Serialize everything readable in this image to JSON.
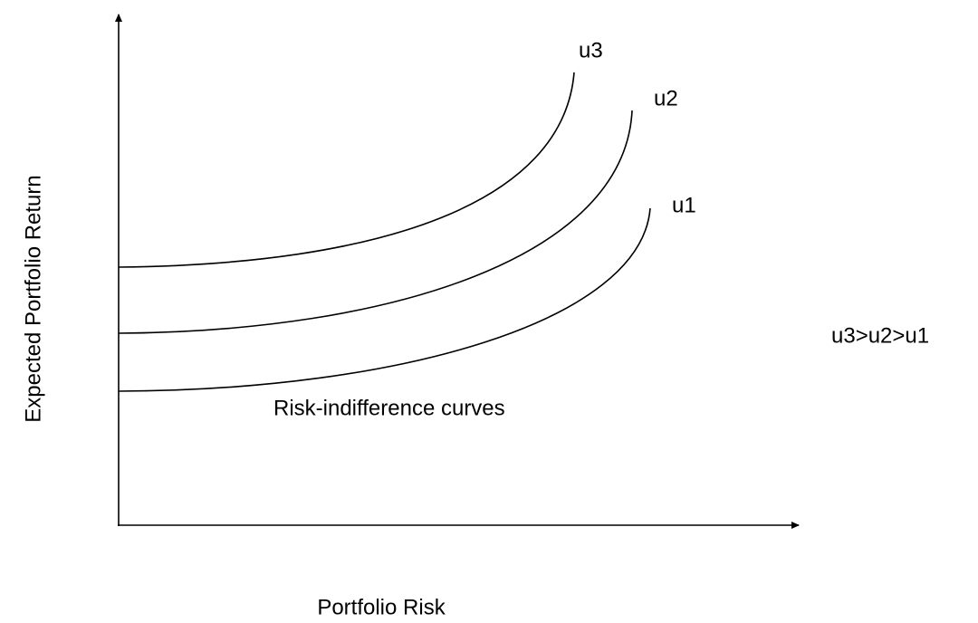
{
  "axes": {
    "x_label": "Portfolio Risk",
    "y_label": "Expected Portfolio Return"
  },
  "curves": [
    {
      "label": "u3"
    },
    {
      "label": "u2"
    },
    {
      "label": "u1"
    }
  ],
  "caption": "Risk-indifference curves",
  "ordering": "u3>u2>u1"
}
